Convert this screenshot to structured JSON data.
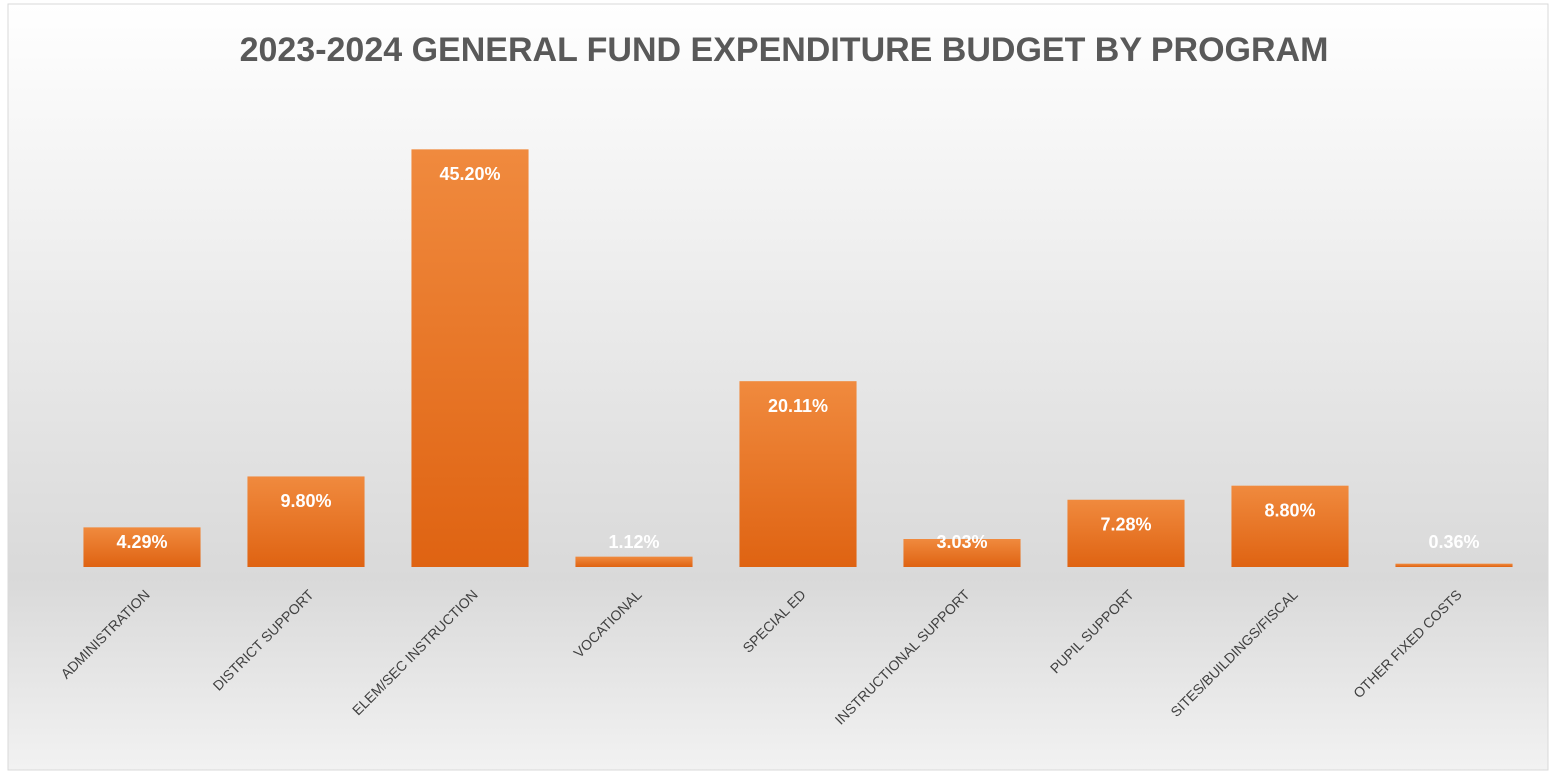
{
  "chart_data": {
    "type": "bar",
    "title": "2023-2024 GENERAL FUND EXPENDITURE BUDGET BY PROGRAM",
    "categories": [
      "ADMINISTRATION",
      "DISTRICT SUPPORT",
      "ELEM/SEC INSTRUCTION",
      "VOCATIONAL",
      "SPECIAL ED",
      "INSTRUCTIONAL SUPPORT",
      "PUPIL SUPPORT",
      "SITES/BUILDINGS/FISCAL",
      "OTHER FIXED COSTS"
    ],
    "values": [
      4.29,
      9.8,
      45.2,
      1.12,
      20.11,
      3.03,
      7.28,
      8.8,
      0.36
    ],
    "value_labels": [
      "4.29%",
      "9.80%",
      "45.20%",
      "1.12%",
      "20.11%",
      "3.03%",
      "7.28%",
      "8.80%",
      "0.36%"
    ],
    "color": "#ed7d31",
    "ylim": [
      0,
      50
    ],
    "grid": false
  }
}
